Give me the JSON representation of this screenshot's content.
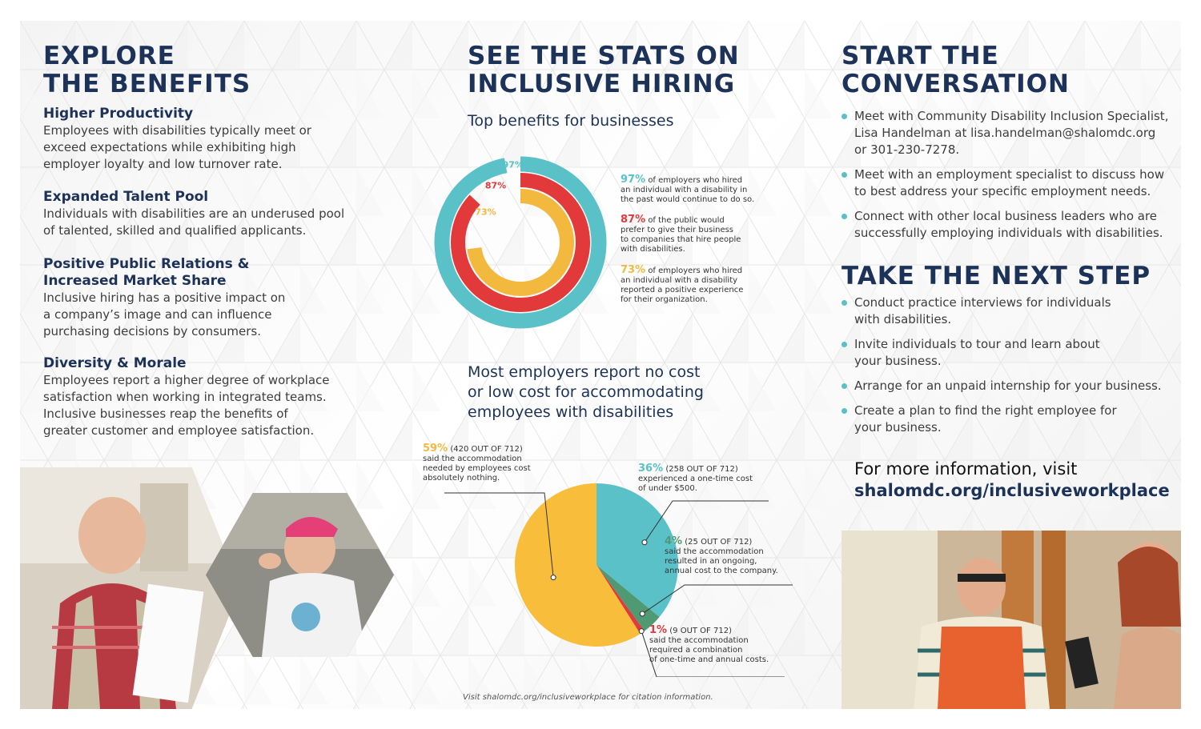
{
  "left": {
    "heading_line1": "EXPLORE",
    "heading_line2": "THE BENEFITS",
    "sections": [
      {
        "title": "Higher Productivity",
        "lines": [
          "Employees with disabilities typically meet or",
          "exceed expectations while exhibiting high",
          "employer loyalty and low turnover rate."
        ]
      },
      {
        "title": "Expanded Talent Pool",
        "lines": [
          "Individuals with disabilities are an underused pool",
          "of talented, skilled and qualified applicants."
        ]
      },
      {
        "title": "Positive Public Relations &",
        "title2": "Increased Market Share",
        "lines": [
          "Inclusive hiring has a positive impact on",
          "a company’s image and can influence",
          "purchasing decisions by consumers."
        ]
      },
      {
        "title": "Diversity & Morale",
        "lines": [
          "Employees report a higher degree of workplace",
          "satisfaction when working in integrated teams.",
          "Inclusive businesses reap the benefits of",
          "greater customer and employee satisfaction."
        ]
      }
    ]
  },
  "middle": {
    "heading_line1": "SEE THE STATS ON",
    "heading_line2": "INCLUSIVE HIRING",
    "benefits_title": "Top benefits for businesses",
    "cost_title_lines": [
      "Most employers report no cost",
      "or low cost for accommodating",
      "employees with disabilities"
    ],
    "footnote": "Visit shalomdc.org/inclusiveworkplace for citation information."
  },
  "right": {
    "heading_line1": "START THE",
    "heading_line2": "CONVERSATION",
    "conversation": [
      {
        "lines": [
          "Meet with Community Disability Inclusion Specialist,",
          "Lisa Handelman at lisa.handelman@shalomdc.org",
          "or 301-230-7278."
        ]
      },
      {
        "lines": [
          "Meet with an employment specialist to discuss how",
          "to best address your specific employment needs."
        ]
      },
      {
        "lines": [
          "Connect with other local business leaders who are",
          "successfully employing individuals with disabilities."
        ]
      }
    ],
    "next_heading": "TAKE THE NEXT STEP",
    "next_steps": [
      {
        "lines": [
          "Conduct practice interviews for individuals",
          "with disabilities."
        ]
      },
      {
        "lines": [
          "Invite individuals to tour and learn about",
          "your business."
        ]
      },
      {
        "lines": [
          "Arrange for an unpaid internship for your business."
        ]
      },
      {
        "lines": [
          "Create a plan to find the right employee for",
          "your business."
        ]
      }
    ],
    "more_info": "For more information, visit",
    "url": "shalomdc.org/inclusiveworkplace"
  },
  "chart_data": [
    {
      "type": "radial-bar",
      "title": "Top benefits for businesses",
      "series": [
        {
          "label": "97%",
          "value": 97,
          "color": "#5bc1c9",
          "text_bold": "97%",
          "text": [
            "of employers who hired",
            "an individual with a disability in",
            "the past would continue to do so."
          ]
        },
        {
          "label": "87%",
          "value": 87,
          "color": "#e2393a",
          "text_bold": "87%",
          "text": [
            "of the public would",
            "prefer to give their business",
            "to companies that hire people",
            "with disabilities."
          ]
        },
        {
          "label": "73%",
          "value": 73,
          "color": "#f3b93f",
          "text_bold": "73%",
          "text": [
            "of employers who hired",
            "an individual with a disability",
            "reported a positive experience",
            "for their organization."
          ]
        }
      ]
    },
    {
      "type": "pie",
      "title": "Most employers report no cost or low cost for accommodating employees with disabilities",
      "slices": [
        {
          "label": "36%",
          "value": 36,
          "count": "(258 OUT OF 712)",
          "color": "#5bc1c9",
          "text": [
            "experienced a one-time cost",
            "of under $500."
          ]
        },
        {
          "label": "4%",
          "value": 4,
          "count": "(25 OUT OF 712)",
          "color": "#4f9a72",
          "text": [
            "said the accommodation",
            "resulted in an ongoing,",
            "annual cost to the company."
          ]
        },
        {
          "label": "1%",
          "value": 1,
          "count": "(9 OUT OF 712)",
          "color": "#e2393a",
          "text": [
            "said the accommodation",
            "required a combination",
            "of one-time and annual costs."
          ]
        },
        {
          "label": "59%",
          "value": 59,
          "count": "(420 OUT OF 712)",
          "color": "#f8bd3b",
          "text": [
            "said the accommodation",
            "needed by employees cost",
            "absolutely nothing."
          ]
        }
      ]
    }
  ]
}
